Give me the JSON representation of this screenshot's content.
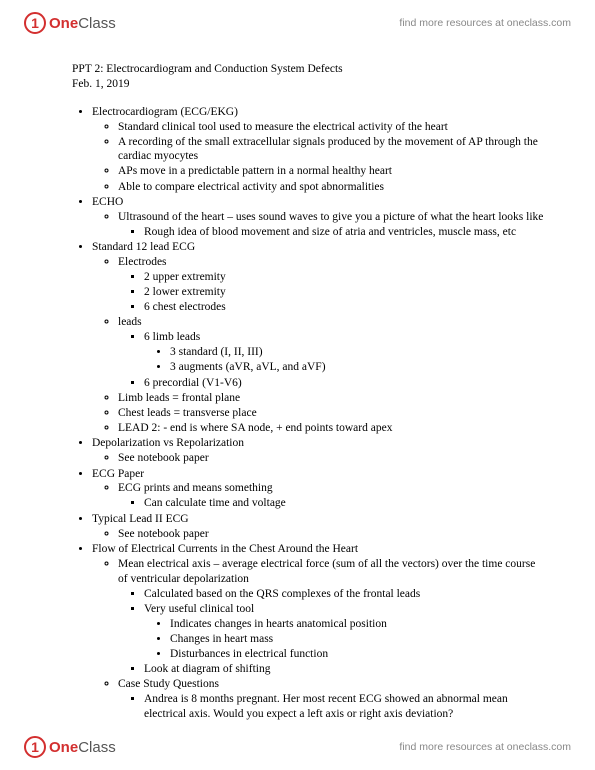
{
  "brand": {
    "icon_glyph": "1",
    "one": "One",
    "class": "Class",
    "tagline": "find more resources at oneclass.com"
  },
  "doc": {
    "title": "PPT 2: Electrocardiogram and Conduction System Defects",
    "date": "Feb. 1, 2019"
  },
  "b": {
    "l1": "Electrocardiogram (ECG/EKG)",
    "l1a": "Standard clinical tool used to measure the electrical activity of the heart",
    "l1b": "A recording of the small extracellular signals produced by the movement of AP through the cardiac myocytes",
    "l1c": "APs move in a predictable pattern in a normal healthy heart",
    "l1d": "Able to compare electrical activity and spot abnormalities",
    "l2": "ECHO",
    "l2a": "Ultrasound of the heart – uses sound waves to give you a picture of what the heart looks like",
    "l2a1": "Rough idea of blood movement and size of atria and ventricles, muscle mass, etc",
    "l3": "Standard 12 lead ECG",
    "l3a": "Electrodes",
    "l3a1": "2 upper extremity",
    "l3a2": "2 lower extremity",
    "l3a3": "6 chest electrodes",
    "l3b": "leads",
    "l3b1": "6 limb leads",
    "l3b1a": "3 standard (I, II, III)",
    "l3b1b": "3 augments (aVR, aVL, and aVF)",
    "l3b2": "6 precordial (V1-V6)",
    "l3c": "Limb leads = frontal plane",
    "l3d": "Chest leads = transverse place",
    "l3e": "LEAD 2: - end is where SA node, + end points toward apex",
    "l4": "Depolarization vs Repolarization",
    "l4a": "See notebook paper",
    "l5": "ECG Paper",
    "l5a": "ECG prints and means something",
    "l5a1": "Can calculate time and voltage",
    "l6": "Typical Lead II ECG",
    "l6a": "See notebook paper",
    "l7": "Flow of Electrical Currents in the Chest Around the Heart",
    "l7a": "Mean electrical axis – average electrical force (sum of all the vectors) over the time course of ventricular depolarization",
    "l7a1": "Calculated based on the QRS complexes of the frontal leads",
    "l7a2": "Very useful clinical tool",
    "l7a2a": "Indicates changes in hearts anatomical position",
    "l7a2b": "Changes in heart mass",
    "l7a2c": "Disturbances in electrical function",
    "l7a3": "Look at diagram of shifting",
    "l7b": "Case Study Questions",
    "l7b1": "Andrea is 8 months pregnant. Her most recent ECG showed an abnormal mean electrical axis. Would you expect a left axis or right axis deviation?"
  }
}
